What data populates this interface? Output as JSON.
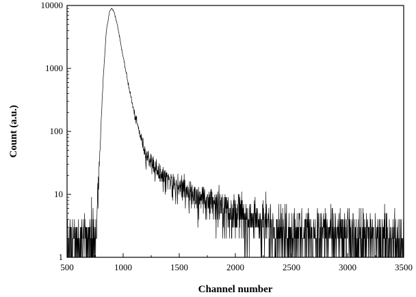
{
  "chart_data": {
    "type": "line",
    "title": "",
    "xlabel": "Channel number",
    "ylabel": "Count (a.u.)",
    "xlim": [
      500,
      3500
    ],
    "ylim": [
      1,
      10000
    ],
    "yscale": "log",
    "grid": false,
    "xticks": [
      500,
      1000,
      1500,
      2000,
      2500,
      3000,
      3500
    ],
    "yticks": [
      1,
      10,
      100,
      1000,
      10000
    ],
    "xtick_labels": [
      "500",
      "1000",
      "1500",
      "2000",
      "2500",
      "3000",
      "3500"
    ],
    "ytick_labels": [
      "1",
      "10",
      "100",
      "1000",
      "10000"
    ],
    "series": [
      {
        "line_color": "#000000",
        "envelope": {
          "x": [
            500,
            600,
            700,
            760,
            790,
            820,
            850,
            880,
            900,
            920,
            950,
            1000,
            1050,
            1100,
            1150,
            1200,
            1300,
            1400,
            1500,
            1600,
            1700,
            1800,
            1900,
            2000,
            2100,
            2200,
            2300,
            2400,
            2500,
            2700,
            2900,
            3100,
            3300,
            3500
          ],
          "y": [
            1.8,
            1.8,
            1.9,
            3,
            40,
            600,
            4000,
            8200,
            9000,
            7800,
            4800,
            1500,
            520,
            190,
            90,
            45,
            25,
            16,
            13,
            11,
            9,
            7.5,
            6.3,
            5.4,
            4.6,
            4,
            3.5,
            3.1,
            2.8,
            2.5,
            2.3,
            2.2,
            2.1,
            2.1
          ]
        }
      }
    ]
  }
}
